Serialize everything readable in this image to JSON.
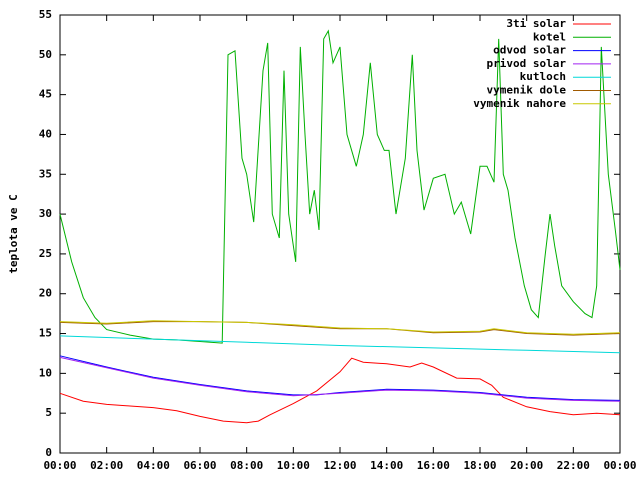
{
  "chart_data": {
    "type": "line",
    "ylabel": "teplota ve C",
    "xlim": [
      0,
      24
    ],
    "xticks": [
      {
        "value": 0,
        "label": "00:00"
      },
      {
        "value": 2,
        "label": "02:00"
      },
      {
        "value": 4,
        "label": "04:00"
      },
      {
        "value": 6,
        "label": "06:00"
      },
      {
        "value": 8,
        "label": "08:00"
      },
      {
        "value": 10,
        "label": "10:00"
      },
      {
        "value": 12,
        "label": "12:00"
      },
      {
        "value": 14,
        "label": "14:00"
      },
      {
        "value": 16,
        "label": "16:00"
      },
      {
        "value": 18,
        "label": "18:00"
      },
      {
        "value": 20,
        "label": "20:00"
      },
      {
        "value": 22,
        "label": "22:00"
      },
      {
        "value": 24,
        "label": "00:00"
      }
    ],
    "ylim": [
      0,
      55
    ],
    "yticks": [
      0,
      5,
      10,
      15,
      20,
      25,
      30,
      35,
      40,
      45,
      50,
      55
    ],
    "legend": "top-right",
    "series": [
      {
        "name": "3ti solar",
        "color": "#ff0000",
        "x": [
          0,
          1,
          2,
          3,
          4,
          5,
          6,
          7,
          8,
          8.5,
          9,
          10,
          11,
          12,
          12.5,
          13,
          14,
          15,
          15.5,
          16,
          17,
          18,
          18.5,
          19,
          20,
          21,
          22,
          23,
          24
        ],
        "values": [
          7.5,
          6.5,
          6.1,
          5.9,
          5.7,
          5.3,
          4.6,
          4.0,
          3.8,
          4.0,
          4.8,
          6.2,
          7.8,
          10.2,
          11.9,
          11.4,
          11.2,
          10.8,
          11.3,
          10.8,
          9.4,
          9.3,
          8.5,
          7.0,
          5.8,
          5.2,
          4.8,
          5.0,
          4.8
        ]
      },
      {
        "name": "kotel",
        "color": "#00b000",
        "x": [
          0,
          0.5,
          1,
          1.5,
          2,
          3,
          4,
          5,
          6,
          6.95,
          7.2,
          7.5,
          7.8,
          8,
          8.3,
          8.7,
          8.9,
          9.1,
          9.4,
          9.6,
          9.8,
          10.1,
          10.3,
          10.5,
          10.7,
          10.9,
          11.1,
          11.3,
          11.5,
          11.7,
          12,
          12.3,
          12.7,
          13,
          13.3,
          13.6,
          13.9,
          14.1,
          14.4,
          14.8,
          15.1,
          15.3,
          15.6,
          16,
          16.5,
          16.9,
          17.2,
          17.6,
          18,
          18.3,
          18.6,
          18.8,
          19,
          19.2,
          19.5,
          19.9,
          20.2,
          20.5,
          20.8,
          21,
          21.2,
          21.5,
          22,
          22.5,
          22.8,
          23,
          23.2,
          23.5,
          23.8,
          24
        ],
        "values": [
          30,
          24,
          19.5,
          17,
          15.5,
          14.8,
          14.3,
          14.2,
          14.0,
          13.8,
          50,
          50.5,
          37,
          35,
          29,
          48,
          51.5,
          30,
          27,
          48,
          30,
          24,
          51,
          40,
          30,
          33,
          28,
          52,
          53,
          49,
          51,
          40,
          36,
          40,
          49,
          40,
          38,
          38,
          30,
          37,
          50,
          38,
          30.5,
          34.5,
          35,
          30,
          31.5,
          27.5,
          36,
          36,
          34,
          52,
          35,
          33,
          27,
          21,
          18,
          17,
          25,
          30,
          26,
          21,
          19,
          17.5,
          17,
          21,
          51,
          35,
          28,
          23
        ]
      },
      {
        "name": "odvod solar",
        "color": "#0000ff",
        "x": [
          0,
          2,
          4,
          6,
          8,
          10,
          11,
          12,
          14,
          16,
          18,
          20,
          22,
          24
        ],
        "values": [
          12.2,
          10.8,
          9.5,
          8.6,
          7.8,
          7.3,
          7.3,
          7.6,
          8.0,
          7.9,
          7.6,
          7.0,
          6.7,
          6.6
        ]
      },
      {
        "name": "privod solar",
        "color": "#a020f0",
        "x": [
          0,
          2,
          4,
          6,
          8,
          10,
          12,
          14,
          16,
          18,
          20,
          22,
          24
        ],
        "values": [
          12.0,
          10.7,
          9.4,
          8.5,
          7.7,
          7.2,
          7.5,
          7.9,
          7.8,
          7.5,
          6.9,
          6.6,
          6.5
        ]
      },
      {
        "name": "kutloch",
        "color": "#00d8d8",
        "x": [
          0,
          4,
          8,
          12,
          16,
          20,
          24
        ],
        "values": [
          14.7,
          14.3,
          13.9,
          13.5,
          13.2,
          12.9,
          12.6
        ]
      },
      {
        "name": "vymenik dole",
        "color": "#a05a00",
        "x": [
          0,
          2,
          4,
          6,
          8,
          10,
          12,
          14,
          16,
          18,
          18.6,
          20,
          22,
          24
        ],
        "values": [
          16.4,
          16.2,
          16.5,
          16.5,
          16.4,
          16.0,
          15.6,
          15.6,
          15.1,
          15.2,
          15.5,
          15.0,
          14.8,
          15.0
        ]
      },
      {
        "name": "vymenik nahore",
        "color": "#c8c800",
        "x": [
          0,
          2,
          4,
          6,
          8,
          10,
          12,
          14,
          16,
          18,
          18.6,
          20,
          22,
          24
        ],
        "values": [
          16.5,
          16.3,
          16.6,
          16.5,
          16.4,
          16.1,
          15.7,
          15.6,
          15.2,
          15.3,
          15.6,
          15.1,
          14.9,
          15.1
        ]
      }
    ]
  }
}
